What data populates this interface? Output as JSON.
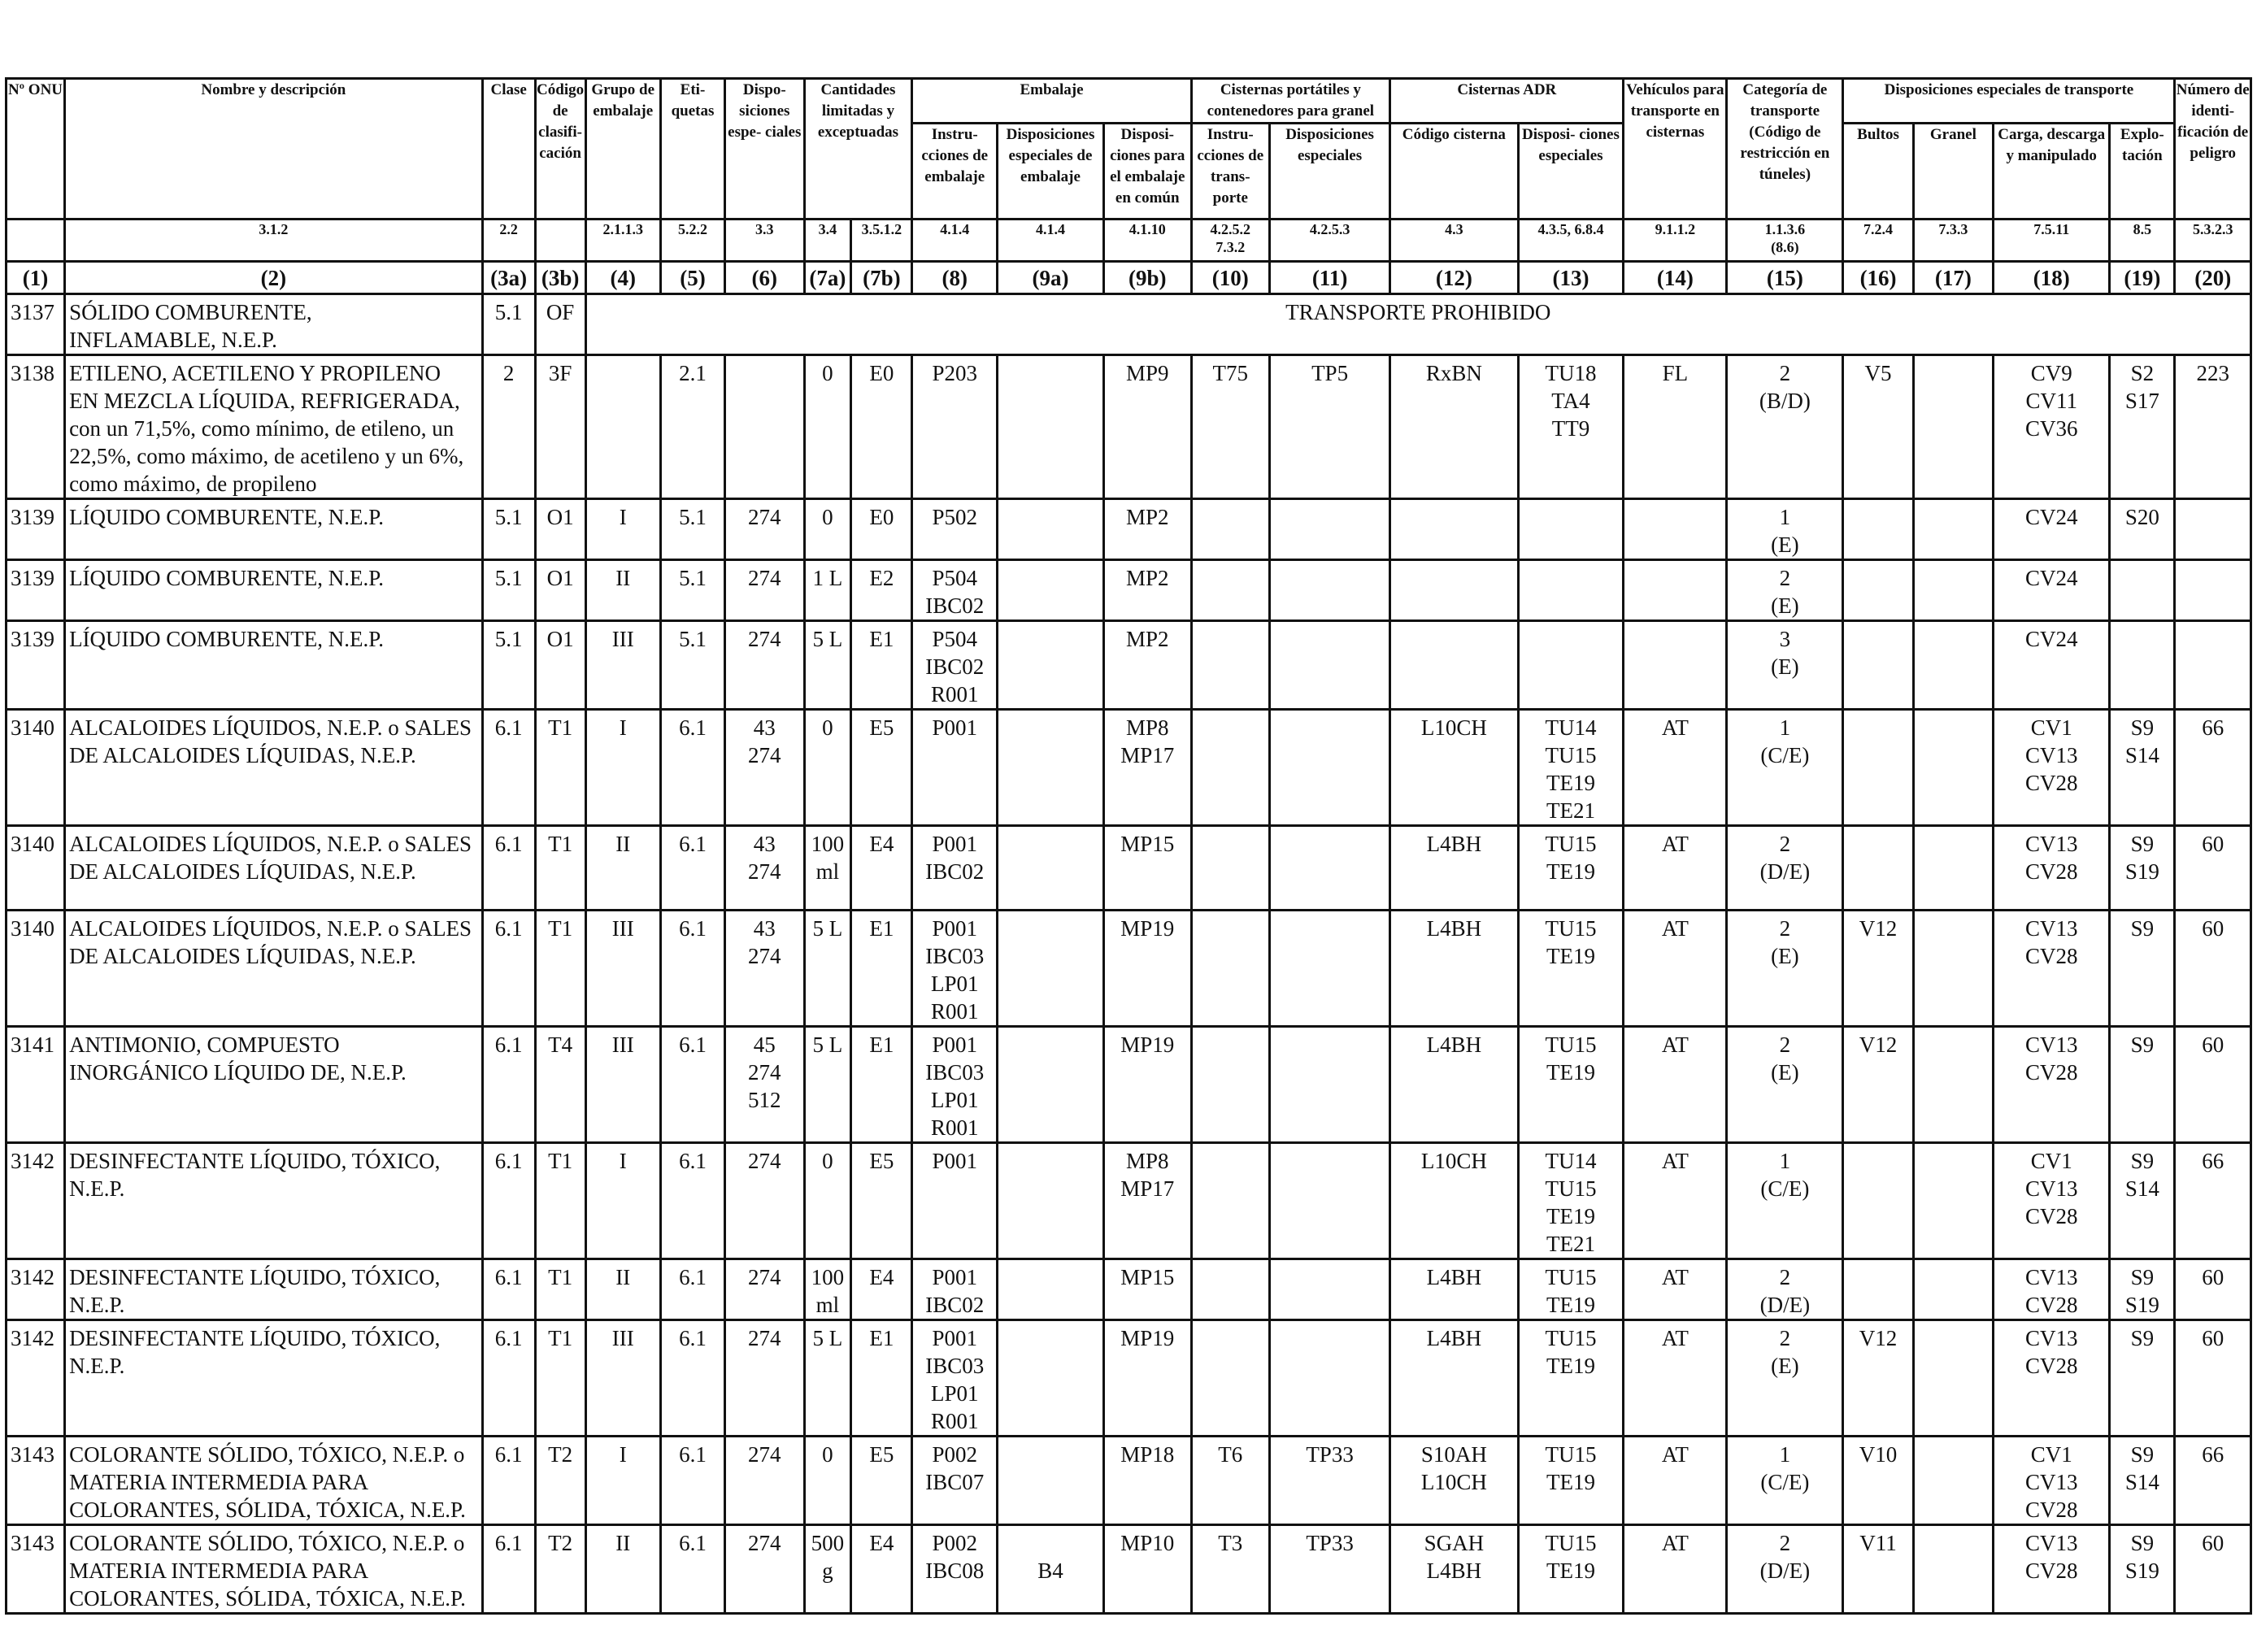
{
  "header": {
    "col1": "Nº ONU",
    "col2": "Nombre y descripción",
    "col3a": "Clase",
    "col3b": "Código de clasifi- cación",
    "col4": "Grupo de embalaje",
    "col5": "Eti- quetas",
    "col6": "Dispo- siciones espe- ciales",
    "col7": "Cantidades limitadas y exceptuadas",
    "embalaje": "Embalaje",
    "col8": "Instru- cciones de embalaje",
    "col9a": "Disposiciones especiales de embalaje",
    "col9b": "Disposi- ciones para el embalaje en común",
    "cisternas_port": "Cisternas portátiles y contenedores para granel",
    "col10": "Instru- cciones de trans- porte",
    "col11": "Disposiciones especiales",
    "cisternas_adr": "Cisternas ADR",
    "col12": "Código cisterna",
    "col13": "Disposi- ciones especiales",
    "col14": "Vehículos para transporte en cisternas",
    "col15": "Categoría de transporte (Código de restricción en túneles)",
    "disp_transp": "Disposiciones especiales de transporte",
    "col16": "Bultos",
    "col17": "Granel",
    "col18": "Carga, descarga y manipulado",
    "col19": "Explo- tación",
    "col20": "Número de identi- ficación de peligro"
  },
  "refs": {
    "r2": "3.1.2",
    "r3a": "2.2",
    "r4": "2.1.1.3",
    "r5": "5.2.2",
    "r6": "3.3",
    "r7a": "3.4",
    "r7b": "3.5.1.2",
    "r8": "4.1.4",
    "r9a": "4.1.4",
    "r9b": "4.1.10",
    "r10a": "4.2.5.2",
    "r10b": "7.3.2",
    "r11": "4.2.5.3",
    "r12": "4.3",
    "r13": "4.3.5, 6.8.4",
    "r14": "9.1.1.2",
    "r15a": "1.1.3.6",
    "r15b": "(8.6)",
    "r16": "7.2.4",
    "r17": "7.3.3",
    "r18": "7.5.11",
    "r19": "8.5",
    "r20": "5.3.2.3"
  },
  "colnums": [
    "(1)",
    "(2)",
    "(3a)",
    "(3b)",
    "(4)",
    "(5)",
    "(6)",
    "(7a)",
    "(7b)",
    "(8)",
    "(9a)",
    "(9b)",
    "(10)",
    "(11)",
    "(12)",
    "(13)",
    "(14)",
    "(15)",
    "(16)",
    "(17)",
    "(18)",
    "(19)",
    "(20)"
  ],
  "rows": [
    {
      "c1": "3137",
      "c2": "SÓLIDO COMBURENTE,\nINFLAMABLE, N.E.P.",
      "c3a": "5.1",
      "c3b": "OF",
      "prohibido": "TRANSPORTE PROHIBIDO"
    },
    {
      "c1": "3138",
      "c2": "ETILENO, ACETILENO Y PROPILENO\nEN MEZCLA LÍQUIDA, REFRIGERADA,\ncon un 71,5%, como mínimo, de etileno, un\n22,5%, como máximo, de acetileno y un 6%,\ncomo máximo, de propileno",
      "c3a": "2",
      "c3b": "3F",
      "c4": "",
      "c5": "2.1",
      "c6": "",
      "c7a": "0",
      "c7b": "E0",
      "c8": "P203",
      "c9a": "",
      "c9b": "MP9",
      "c10": "T75",
      "c11": "TP5",
      "c12": "RxBN",
      "c13": "TU18\nTA4\nTT9",
      "c14": "FL",
      "c15": "2\n(B/D)",
      "c16": "V5",
      "c17": "",
      "c18": "CV9\nCV11\nCV36",
      "c19": "S2\nS17",
      "c20": "223"
    },
    {
      "c1": "3139",
      "c2": "LÍQUIDO COMBURENTE, N.E.P.",
      "c3a": "5.1",
      "c3b": "O1",
      "c4": "I",
      "c5": "5.1",
      "c6": "274",
      "c7a": "0",
      "c7b": "E0",
      "c8": "P502",
      "c9a": "",
      "c9b": "MP2",
      "c10": "",
      "c11": "",
      "c12": "",
      "c13": "",
      "c14": "",
      "c15": "1\n(E)",
      "c16": "",
      "c17": "",
      "c18": "CV24",
      "c19": "S20",
      "c20": ""
    },
    {
      "c1": "3139",
      "c2": "LÍQUIDO COMBURENTE, N.E.P.",
      "c3a": "5.1",
      "c3b": "O1",
      "c4": "II",
      "c5": "5.1",
      "c6": "274",
      "c7a": "1 L",
      "c7b": "E2",
      "c8": "P504\nIBC02",
      "c9a": "",
      "c9b": "MP2",
      "c10": "",
      "c11": "",
      "c12": "",
      "c13": "",
      "c14": "",
      "c15": "2\n(E)",
      "c16": "",
      "c17": "",
      "c18": "CV24",
      "c19": "",
      "c20": ""
    },
    {
      "c1": "3139",
      "c2": "LÍQUIDO COMBURENTE, N.E.P.",
      "c3a": "5.1",
      "c3b": "O1",
      "c4": "III",
      "c5": "5.1",
      "c6": "274",
      "c7a": "5 L",
      "c7b": "E1",
      "c8": "P504\nIBC02\nR001",
      "c9a": "",
      "c9b": "MP2",
      "c10": "",
      "c11": "",
      "c12": "",
      "c13": "",
      "c14": "",
      "c15": "3\n(E)",
      "c16": "",
      "c17": "",
      "c18": "CV24",
      "c19": "",
      "c20": ""
    },
    {
      "c1": "3140",
      "c2": "ALCALOIDES LÍQUIDOS, N.E.P. o SALES\nDE ALCALOIDES LÍQUIDAS, N.E.P.",
      "c3a": "6.1",
      "c3b": "T1",
      "c4": "I",
      "c5": "6.1",
      "c6": "43\n274",
      "c7a": "0",
      "c7b": "E5",
      "c8": "P001",
      "c9a": "",
      "c9b": "MP8\nMP17",
      "c10": "",
      "c11": "",
      "c12": "L10CH",
      "c13": "TU14\nTU15\nTE19\nTE21",
      "c14": "AT",
      "c15": "1\n(C/E)",
      "c16": "",
      "c17": "",
      "c18": "CV1\nCV13\nCV28",
      "c19": "S9\nS14",
      "c20": "66"
    },
    {
      "c1": "3140",
      "c2": "ALCALOIDES LÍQUIDOS, N.E.P. o SALES\nDE ALCALOIDES LÍQUIDAS, N.E.P.",
      "c3a": "6.1",
      "c3b": "T1",
      "c4": "II",
      "c5": "6.1",
      "c6": "43\n274",
      "c7a": "100\nml",
      "c7b": "E4",
      "c8": "P001\nIBC02",
      "c9a": "",
      "c9b": "MP15",
      "c10": "",
      "c11": "",
      "c12": "L4BH",
      "c13": "TU15\nTE19",
      "c14": "AT",
      "c15": "2\n(D/E)",
      "c16": "",
      "c17": "",
      "c18": "CV13\nCV28",
      "c19": "S9\nS19",
      "c20": "60"
    },
    {
      "c1": "3140",
      "c2": "ALCALOIDES LÍQUIDOS, N.E.P. o SALES\nDE ALCALOIDES LÍQUIDAS, N.E.P.",
      "c3a": "6.1",
      "c3b": "T1",
      "c4": "III",
      "c5": "6.1",
      "c6": "43\n274",
      "c7a": "5 L",
      "c7b": "E1",
      "c8": "P001\nIBC03\nLP01\nR001",
      "c9a": "",
      "c9b": "MP19",
      "c10": "",
      "c11": "",
      "c12": "L4BH",
      "c13": "TU15\nTE19",
      "c14": "AT",
      "c15": "2\n(E)",
      "c16": "V12",
      "c17": "",
      "c18": "CV13\nCV28",
      "c19": "S9",
      "c20": "60"
    },
    {
      "c1": "3141",
      "c2": "ANTIMONIO, COMPUESTO\nINORGÁNICO LÍQUIDO DE, N.E.P.",
      "c3a": "6.1",
      "c3b": "T4",
      "c4": "III",
      "c5": "6.1",
      "c6": "45\n274\n512",
      "c7a": "5 L",
      "c7b": "E1",
      "c8": "P001\nIBC03\nLP01\nR001",
      "c9a": "",
      "c9b": "MP19",
      "c10": "",
      "c11": "",
      "c12": "L4BH",
      "c13": "TU15\nTE19",
      "c14": "AT",
      "c15": "2\n(E)",
      "c16": "V12",
      "c17": "",
      "c18": "CV13\nCV28",
      "c19": "S9",
      "c20": "60"
    },
    {
      "c1": "3142",
      "c2": "DESINFECTANTE LÍQUIDO, TÓXICO,\nN.E.P.",
      "c3a": "6.1",
      "c3b": "T1",
      "c4": "I",
      "c5": "6.1",
      "c6": "274",
      "c7a": "0",
      "c7b": "E5",
      "c8": "P001",
      "c9a": "",
      "c9b": "MP8\nMP17",
      "c10": "",
      "c11": "",
      "c12": "L10CH",
      "c13": "TU14\nTU15\nTE19\nTE21",
      "c14": "AT",
      "c15": "1\n(C/E)",
      "c16": "",
      "c17": "",
      "c18": "CV1\nCV13\nCV28",
      "c19": "S9\nS14",
      "c20": "66"
    },
    {
      "c1": "3142",
      "c2": "DESINFECTANTE LÍQUIDO, TÓXICO,\nN.E.P.",
      "c3a": "6.1",
      "c3b": "T1",
      "c4": "II",
      "c5": "6.1",
      "c6": "274",
      "c7a": "100\nml",
      "c7b": "E4",
      "c8": "P001\nIBC02",
      "c9a": "",
      "c9b": "MP15",
      "c10": "",
      "c11": "",
      "c12": "L4BH",
      "c13": "TU15\nTE19",
      "c14": "AT",
      "c15": "2\n(D/E)",
      "c16": "",
      "c17": "",
      "c18": "CV13\nCV28",
      "c19": "S9\nS19",
      "c20": "60"
    },
    {
      "c1": "3142",
      "c2": "DESINFECTANTE LÍQUIDO, TÓXICO,\nN.E.P.",
      "c3a": "6.1",
      "c3b": "T1",
      "c4": "III",
      "c5": "6.1",
      "c6": "274",
      "c7a": "5 L",
      "c7b": "E1",
      "c8": "P001\nIBC03\nLP01\nR001",
      "c9a": "",
      "c9b": "MP19",
      "c10": "",
      "c11": "",
      "c12": "L4BH",
      "c13": "TU15\nTE19",
      "c14": "AT",
      "c15": "2\n(E)",
      "c16": "V12",
      "c17": "",
      "c18": "CV13\nCV28",
      "c19": "S9",
      "c20": "60"
    },
    {
      "c1": "3143",
      "c2": "COLORANTE SÓLIDO, TÓXICO, N.E.P. o\nMATERIA INTERMEDIA PARA\nCOLORANTES, SÓLIDA, TÓXICA, N.E.P.",
      "c3a": "6.1",
      "c3b": "T2",
      "c4": "I",
      "c5": "6.1",
      "c6": "274",
      "c7a": "0",
      "c7b": "E5",
      "c8": "P002\nIBC07",
      "c9a": "",
      "c9b": "MP18",
      "c10": "T6",
      "c11": "TP33",
      "c12": "S10AH\nL10CH",
      "c13": "TU15\nTE19",
      "c14": "AT",
      "c15": "1\n(C/E)",
      "c16": "V10",
      "c17": "",
      "c18": "CV1\nCV13\nCV28",
      "c19": "S9\nS14",
      "c20": "66"
    },
    {
      "c1": "3143",
      "c2": "COLORANTE SÓLIDO, TÓXICO, N.E.P. o\nMATERIA INTERMEDIA PARA\nCOLORANTES, SÓLIDA, TÓXICA, N.E.P.",
      "c3a": "6.1",
      "c3b": "T2",
      "c4": "II",
      "c5": "6.1",
      "c6": "274",
      "c7a": "500\ng",
      "c7b": "E4",
      "c8": "P002\nIBC08",
      "c9a": "\nB4",
      "c9b": "MP10",
      "c10": "T3",
      "c11": "TP33",
      "c12": "SGAH\nL4BH",
      "c13": "TU15\nTE19",
      "c14": "AT",
      "c15": "2\n(D/E)",
      "c16": "V11",
      "c17": "",
      "c18": "CV13\nCV28",
      "c19": "S9\nS19",
      "c20": "60"
    }
  ]
}
